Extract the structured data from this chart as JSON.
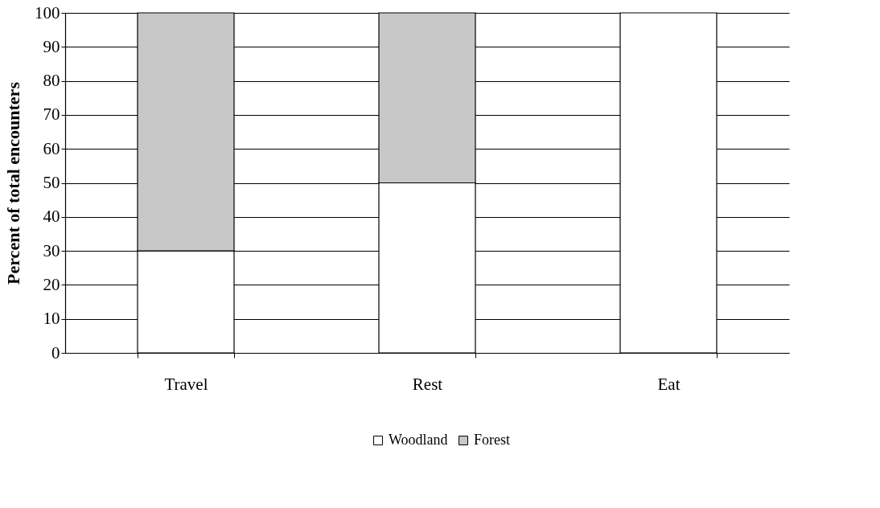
{
  "chart_data": {
    "type": "bar",
    "stacked": true,
    "ylabel": "Percent of total encounters",
    "categories": [
      "Travel",
      "Rest",
      "Eat"
    ],
    "series": [
      {
        "name": "Woodland",
        "color": "#ffffff",
        "values": [
          30,
          50,
          100
        ]
      },
      {
        "name": "Forest",
        "color": "#c8c8c8",
        "values": [
          70,
          50,
          0
        ]
      }
    ],
    "ylim": [
      0,
      100
    ],
    "yticks": [
      0,
      10,
      20,
      30,
      40,
      50,
      60,
      70,
      80,
      90,
      100
    ],
    "grid": "y",
    "legend": "bottom"
  }
}
